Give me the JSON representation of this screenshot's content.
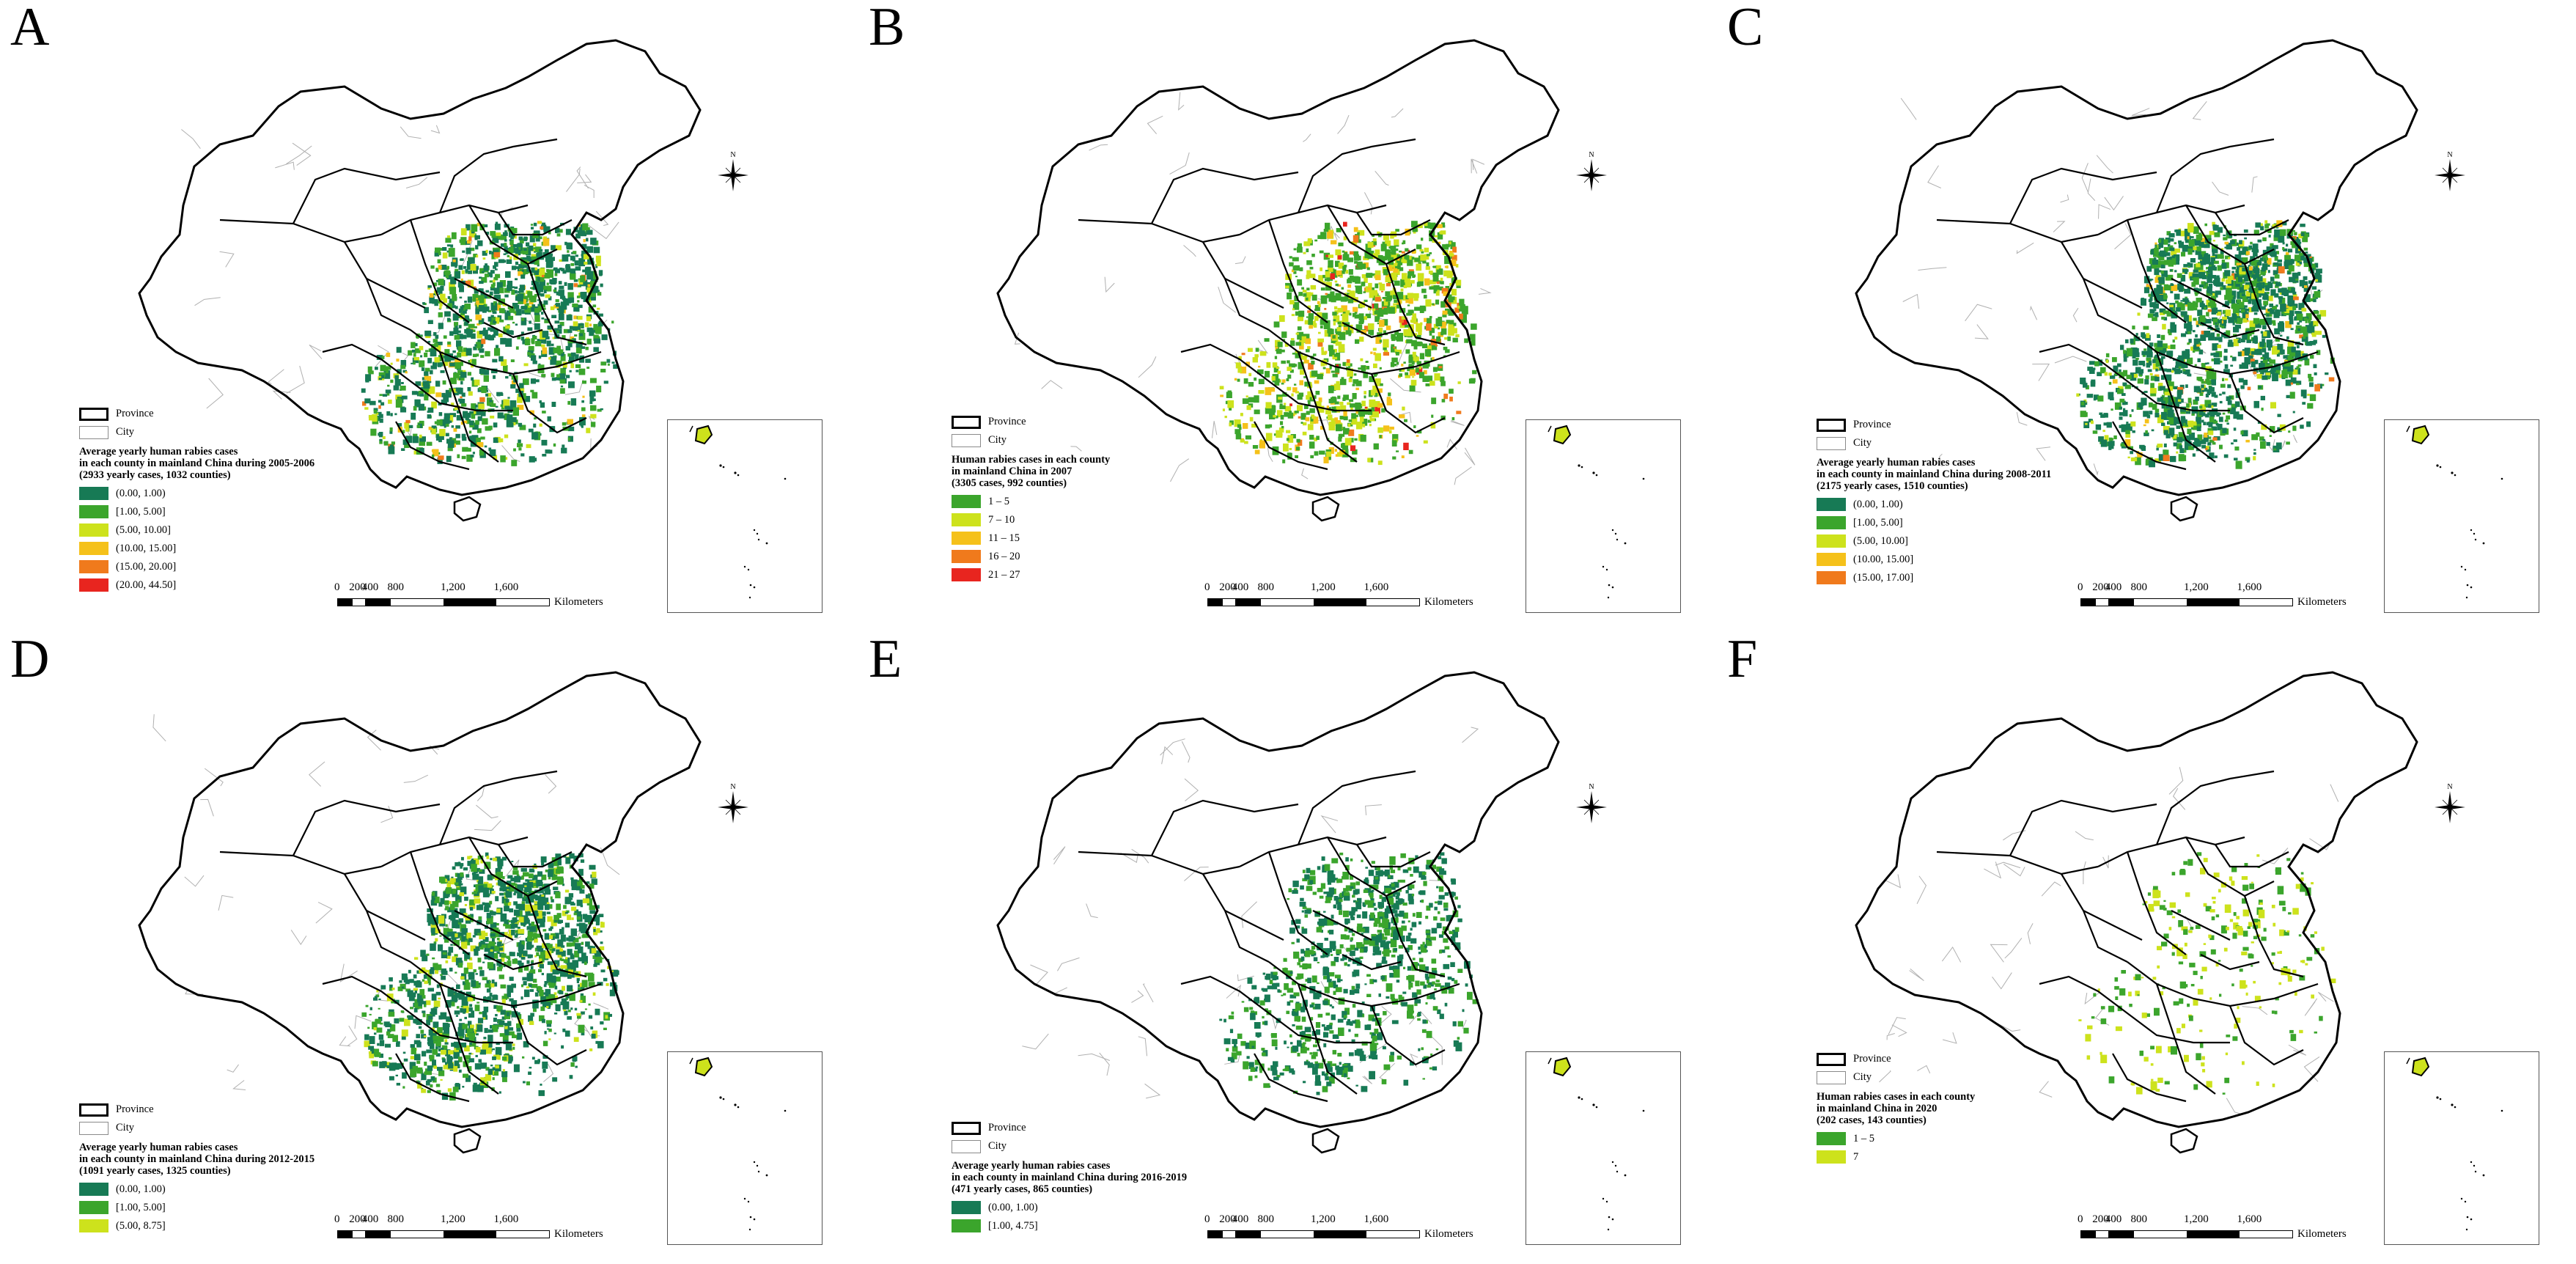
{
  "colors": {
    "dark_green": "#177a55",
    "green": "#3ba52c",
    "yellow_green": "#cde21c",
    "amber": "#f5c11a",
    "orange": "#f07a1c",
    "red": "#e8251f",
    "province_line": "#000000",
    "city_line": "#b0b0b0"
  },
  "common": {
    "province_label": "Province",
    "city_label": "City",
    "north_label": "N",
    "scale_labels": [
      "0",
      "200",
      "400",
      "800",
      "1,200",
      "1,600"
    ],
    "scale_unit": "Kilometers"
  },
  "panels": [
    {
      "letter": "A",
      "title_lines": [
        "Average yearly human rabies cases",
        "in each county in mainland China during 2005-2006",
        "(2933 yearly cases, 1032 counties)"
      ],
      "classes": [
        {
          "label": "(0.00, 1.00)",
          "color": "#177a55"
        },
        {
          "label": "[1.00, 5.00]",
          "color": "#3ba52c"
        },
        {
          "label": "(5.00, 10.00]",
          "color": "#cde21c"
        },
        {
          "label": "(10.00, 15.00]",
          "color": "#f5c11a"
        },
        {
          "label": "(15.00, 20.00]",
          "color": "#f07a1c"
        },
        {
          "label": "(20.00, 44.50]",
          "color": "#e8251f"
        }
      ]
    },
    {
      "letter": "B",
      "title_lines": [
        "Human rabies cases in each county",
        "in mainland China in 2007",
        "(3305 cases, 992 counties)"
      ],
      "classes": [
        {
          "label": "1 – 5",
          "color": "#3ba52c"
        },
        {
          "label": "7 – 10",
          "color": "#cde21c"
        },
        {
          "label": "11 – 15",
          "color": "#f5c11a"
        },
        {
          "label": "16 – 20",
          "color": "#f07a1c"
        },
        {
          "label": "21 – 27",
          "color": "#e8251f"
        }
      ]
    },
    {
      "letter": "C",
      "title_lines": [
        "Average yearly human rabies cases",
        "in each county in mainland China during 2008-2011",
        "(2175 yearly cases, 1510 counties)"
      ],
      "classes": [
        {
          "label": "(0.00, 1.00)",
          "color": "#177a55"
        },
        {
          "label": "[1.00, 5.00]",
          "color": "#3ba52c"
        },
        {
          "label": "(5.00, 10.00]",
          "color": "#cde21c"
        },
        {
          "label": "(10.00, 15.00]",
          "color": "#f5c11a"
        },
        {
          "label": "(15.00, 17.00]",
          "color": "#f07a1c"
        }
      ]
    },
    {
      "letter": "D",
      "title_lines": [
        "Average yearly human rabies cases",
        "in each county in mainland China during 2012-2015",
        "(1091 yearly cases, 1325 counties)"
      ],
      "classes": [
        {
          "label": "(0.00, 1.00)",
          "color": "#177a55"
        },
        {
          "label": "[1.00, 5.00]",
          "color": "#3ba52c"
        },
        {
          "label": "(5.00, 8.75]",
          "color": "#cde21c"
        }
      ]
    },
    {
      "letter": "E",
      "title_lines": [
        "Average yearly human rabies cases",
        "in each county in mainland China during 2016-2019",
        "(471 yearly cases, 865 counties)"
      ],
      "classes": [
        {
          "label": "(0.00, 1.00)",
          "color": "#177a55"
        },
        {
          "label": "[1.00, 4.75]",
          "color": "#3ba52c"
        }
      ]
    },
    {
      "letter": "F",
      "title_lines": [
        "Human rabies cases in each county",
        "in mainland China in 2020",
        "(202 cases, 143 counties)"
      ],
      "classes": [
        {
          "label": "1 – 5",
          "color": "#3ba52c"
        },
        {
          "label": "7",
          "color": "#cde21c"
        }
      ]
    }
  ]
}
